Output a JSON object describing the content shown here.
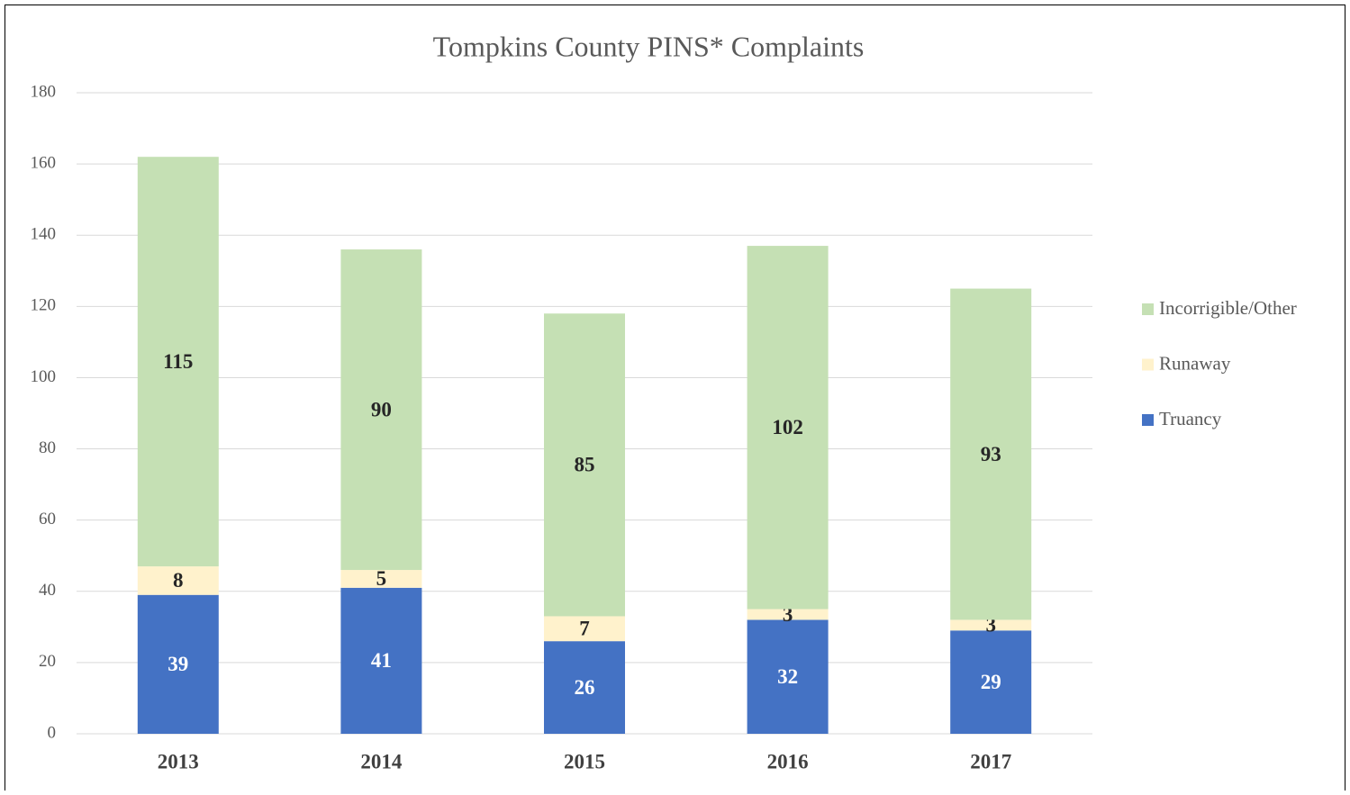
{
  "chart_data": {
    "type": "stacked_bar",
    "title": "Tompkins County PINS* Complaints",
    "categories": [
      "2013",
      "2014",
      "2015",
      "2016",
      "2017"
    ],
    "series": [
      {
        "name": "Truancy",
        "color": "#4472c4",
        "values": [
          39,
          41,
          26,
          32,
          29
        ]
      },
      {
        "name": "Runaway",
        "color": "#fff2cc",
        "values": [
          8,
          5,
          7,
          3,
          3
        ]
      },
      {
        "name": "Incorrigible/Other",
        "color": "#c5e0b4",
        "values": [
          115,
          90,
          85,
          102,
          93
        ]
      }
    ],
    "ylim": [
      0,
      180
    ],
    "yticks": [
      0,
      20,
      40,
      60,
      80,
      100,
      120,
      140,
      160,
      180
    ],
    "grid": true,
    "legend": "right"
  }
}
